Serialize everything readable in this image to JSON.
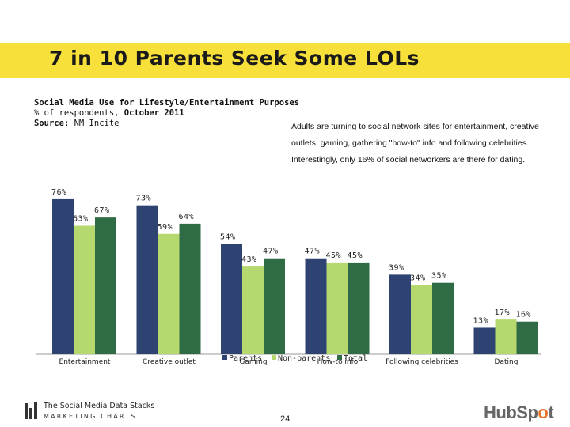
{
  "header": {
    "title": "7 in 10 Parents Seek Some LOLs"
  },
  "subtitle": {
    "line1": "Social Media Use for Lifestyle/Entertainment Purposes",
    "line2_prefix": "% of respondents, ",
    "line2_bold": "October 2011",
    "line3_bold": "Source:",
    "line3_rest": " NM Incite"
  },
  "note": "Adults are turning to social network sites for entertainment, creative outlets, gaming, gathering \"how-to\" info and following celebrities. Interestingly, only 16% of social networkers are there for dating.",
  "chart_data": {
    "type": "bar",
    "title": "Social Media Use for Lifestyle/Entertainment Purposes",
    "ylabel": "% of respondents",
    "ylim": [
      0,
      80
    ],
    "categories": [
      "Entertainment",
      "Creative outlet",
      "Gaming",
      "How-to info",
      "Following celebrities",
      "Dating"
    ],
    "series": [
      {
        "name": "Parents",
        "color": "#2e4372",
        "values": [
          76,
          73,
          54,
          47,
          39,
          13
        ],
        "labels": [
          "76%",
          "73%",
          "54%",
          "47%",
          "39%",
          "13%"
        ]
      },
      {
        "name": "Non-parents",
        "color": "#b5d96f",
        "values": [
          63,
          59,
          43,
          45,
          34,
          17
        ],
        "labels": [
          "63%",
          "59%",
          "43%",
          "45%",
          "34%",
          "17%"
        ]
      },
      {
        "name": "Total",
        "color": "#2f6b45",
        "values": [
          67,
          64,
          47,
          45,
          35,
          16
        ],
        "labels": [
          "67%",
          "64%",
          "47%",
          "45%",
          "35%",
          "16%"
        ]
      }
    ],
    "legend": "bottom-center"
  },
  "footer": {
    "logo_line1": "The Social Media Data Stacks",
    "logo_line2": "MARKETING CHARTS",
    "page_number": "24",
    "brand_part1": "HubSp",
    "brand_part2": "o",
    "brand_part3": "t"
  }
}
